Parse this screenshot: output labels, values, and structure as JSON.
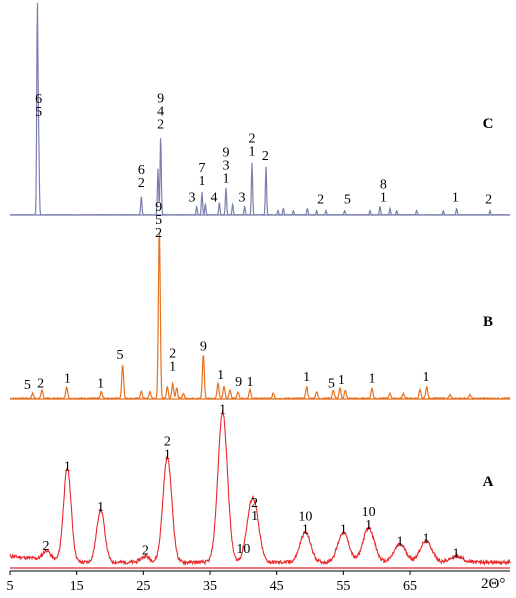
{
  "chart_data": {
    "type": "line",
    "xlabel": "2Θ°",
    "x_ticks": [
      5,
      15,
      25,
      35,
      45,
      55,
      65
    ],
    "xlim": [
      5,
      80
    ],
    "colors": {
      "A": "#e8282b",
      "B": "#e8701e",
      "C": "#7b7fae"
    },
    "panels": [
      {
        "name": "C",
        "peaks": [
          [
            9.1,
            1.0
          ],
          [
            9.3,
            0.34
          ],
          [
            24.7,
            0.09
          ],
          [
            27.2,
            0.22
          ],
          [
            27.6,
            0.38
          ],
          [
            33.0,
            0.04
          ],
          [
            33.8,
            0.11
          ],
          [
            34.3,
            0.05
          ],
          [
            36.4,
            0.06
          ],
          [
            37.4,
            0.13
          ],
          [
            38.4,
            0.05
          ],
          [
            40.2,
            0.04
          ],
          [
            41.3,
            0.25
          ],
          [
            43.4,
            0.23
          ],
          [
            45.2,
            0.02
          ],
          [
            46.0,
            0.03
          ],
          [
            47.5,
            0.02
          ],
          [
            49.6,
            0.03
          ],
          [
            51.0,
            0.02
          ],
          [
            52.4,
            0.02
          ],
          [
            55.2,
            0.02
          ],
          [
            59.0,
            0.02
          ],
          [
            60.5,
            0.04
          ],
          [
            62.0,
            0.03
          ],
          [
            63.0,
            0.02
          ],
          [
            66.0,
            0.02
          ],
          [
            70.0,
            0.02
          ],
          [
            72.0,
            0.03
          ],
          [
            77.0,
            0.02
          ]
        ],
        "labels": [
          {
            "x": 9.3,
            "y": 0.46,
            "text": [
              "6",
              "5"
            ]
          },
          {
            "x": 24.7,
            "y": 0.12,
            "text": [
              "6",
              "2"
            ]
          },
          {
            "x": 27.6,
            "y": 0.4,
            "text": [
              "9",
              "4",
              "2"
            ]
          },
          {
            "x": 32.3,
            "y": 0.05,
            "text": [
              "3"
            ]
          },
          {
            "x": 33.8,
            "y": 0.13,
            "text": [
              "7",
              "1"
            ]
          },
          {
            "x": 35.6,
            "y": 0.05,
            "text": [
              "4"
            ]
          },
          {
            "x": 37.4,
            "y": 0.14,
            "text": [
              "9",
              "3",
              "1"
            ]
          },
          {
            "x": 39.8,
            "y": 0.05,
            "text": [
              "3"
            ]
          },
          {
            "x": 41.3,
            "y": 0.27,
            "text": [
              "2",
              "1"
            ]
          },
          {
            "x": 43.3,
            "y": 0.25,
            "text": [
              "2"
            ]
          },
          {
            "x": 51.6,
            "y": 0.04,
            "text": [
              "2"
            ]
          },
          {
            "x": 55.6,
            "y": 0.04,
            "text": [
              "5"
            ]
          },
          {
            "x": 61.0,
            "y": 0.05,
            "text": [
              "8",
              "1"
            ]
          },
          {
            "x": 71.8,
            "y": 0.05,
            "text": [
              "1"
            ]
          },
          {
            "x": 76.8,
            "y": 0.04,
            "text": [
              "2"
            ]
          }
        ]
      },
      {
        "name": "B",
        "peaks": [
          [
            8.4,
            0.03
          ],
          [
            9.8,
            0.05
          ],
          [
            13.5,
            0.07
          ],
          [
            18.7,
            0.04
          ],
          [
            21.9,
            0.2
          ],
          [
            24.7,
            0.04
          ],
          [
            26.0,
            0.04
          ],
          [
            27.4,
            1.0
          ],
          [
            28.6,
            0.07
          ],
          [
            29.4,
            0.09
          ],
          [
            30.0,
            0.06
          ],
          [
            31.0,
            0.03
          ],
          [
            34.0,
            0.26
          ],
          [
            36.2,
            0.09
          ],
          [
            37.1,
            0.07
          ],
          [
            38.0,
            0.05
          ],
          [
            39.2,
            0.04
          ],
          [
            41.0,
            0.05
          ],
          [
            44.5,
            0.03
          ],
          [
            49.5,
            0.07
          ],
          [
            51.0,
            0.04
          ],
          [
            53.5,
            0.05
          ],
          [
            54.5,
            0.06
          ],
          [
            55.3,
            0.05
          ],
          [
            59.3,
            0.06
          ],
          [
            62.0,
            0.03
          ],
          [
            64.0,
            0.03
          ],
          [
            66.5,
            0.05
          ],
          [
            67.5,
            0.07
          ],
          [
            71.0,
            0.02
          ],
          [
            74.0,
            0.02
          ]
        ],
        "labels": [
          {
            "x": 7.6,
            "y": 0.04,
            "text": [
              "5"
            ]
          },
          {
            "x": 9.6,
            "y": 0.05,
            "text": [
              "2"
            ]
          },
          {
            "x": 13.6,
            "y": 0.08,
            "text": [
              "1"
            ]
          },
          {
            "x": 18.6,
            "y": 0.05,
            "text": [
              "1"
            ]
          },
          {
            "x": 21.5,
            "y": 0.22,
            "text": [
              "5"
            ]
          },
          {
            "x": 27.3,
            "y": 0.94,
            "text": [
              "9",
              "5",
              "2"
            ]
          },
          {
            "x": 29.4,
            "y": 0.15,
            "text": [
              "2",
              "1"
            ]
          },
          {
            "x": 34.0,
            "y": 0.27,
            "text": [
              "9"
            ]
          },
          {
            "x": 36.6,
            "y": 0.1,
            "text": [
              "1"
            ]
          },
          {
            "x": 39.3,
            "y": 0.06,
            "text": [
              "9"
            ]
          },
          {
            "x": 41.0,
            "y": 0.06,
            "text": [
              "1"
            ]
          },
          {
            "x": 49.5,
            "y": 0.09,
            "text": [
              "1"
            ]
          },
          {
            "x": 53.2,
            "y": 0.05,
            "text": [
              "5"
            ]
          },
          {
            "x": 54.7,
            "y": 0.07,
            "text": [
              "1"
            ]
          },
          {
            "x": 59.3,
            "y": 0.08,
            "text": [
              "1"
            ]
          },
          {
            "x": 67.4,
            "y": 0.09,
            "text": [
              "1"
            ]
          }
        ]
      },
      {
        "name": "A",
        "peaks": [
          [
            10.5,
            0.06
          ],
          [
            13.6,
            0.62
          ],
          [
            18.6,
            0.35
          ],
          [
            25.3,
            0.04
          ],
          [
            28.6,
            0.7
          ],
          [
            36.9,
            1.0
          ],
          [
            41.0,
            0.2
          ],
          [
            41.7,
            0.28
          ],
          [
            49.3,
            0.2
          ],
          [
            55.0,
            0.2
          ],
          [
            58.8,
            0.23
          ],
          [
            63.5,
            0.12
          ],
          [
            67.4,
            0.14
          ],
          [
            72.0,
            0.04
          ]
        ],
        "labels": [
          {
            "x": 10.4,
            "y": 0.1,
            "text": [
              "2"
            ]
          },
          {
            "x": 13.6,
            "y": 0.63,
            "text": [
              "1"
            ]
          },
          {
            "x": 18.6,
            "y": 0.36,
            "text": [
              "1"
            ]
          },
          {
            "x": 25.3,
            "y": 0.07,
            "text": [
              "2"
            ]
          },
          {
            "x": 28.6,
            "y": 0.71,
            "text": [
              "2",
              "1"
            ]
          },
          {
            "x": 36.9,
            "y": 1.01,
            "text": [
              "1"
            ]
          },
          {
            "x": 40.0,
            "y": 0.08,
            "text": [
              "10"
            ]
          },
          {
            "x": 41.7,
            "y": 0.3,
            "text": [
              "2",
              "1"
            ]
          },
          {
            "x": 49.3,
            "y": 0.21,
            "text": [
              "10",
              "1"
            ]
          },
          {
            "x": 55.0,
            "y": 0.21,
            "text": [
              "1"
            ]
          },
          {
            "x": 58.8,
            "y": 0.24,
            "text": [
              "10",
              "1"
            ]
          },
          {
            "x": 63.5,
            "y": 0.13,
            "text": [
              "1"
            ]
          },
          {
            "x": 67.4,
            "y": 0.15,
            "text": [
              "1"
            ]
          },
          {
            "x": 71.9,
            "y": 0.05,
            "text": [
              "1"
            ]
          }
        ]
      }
    ]
  }
}
